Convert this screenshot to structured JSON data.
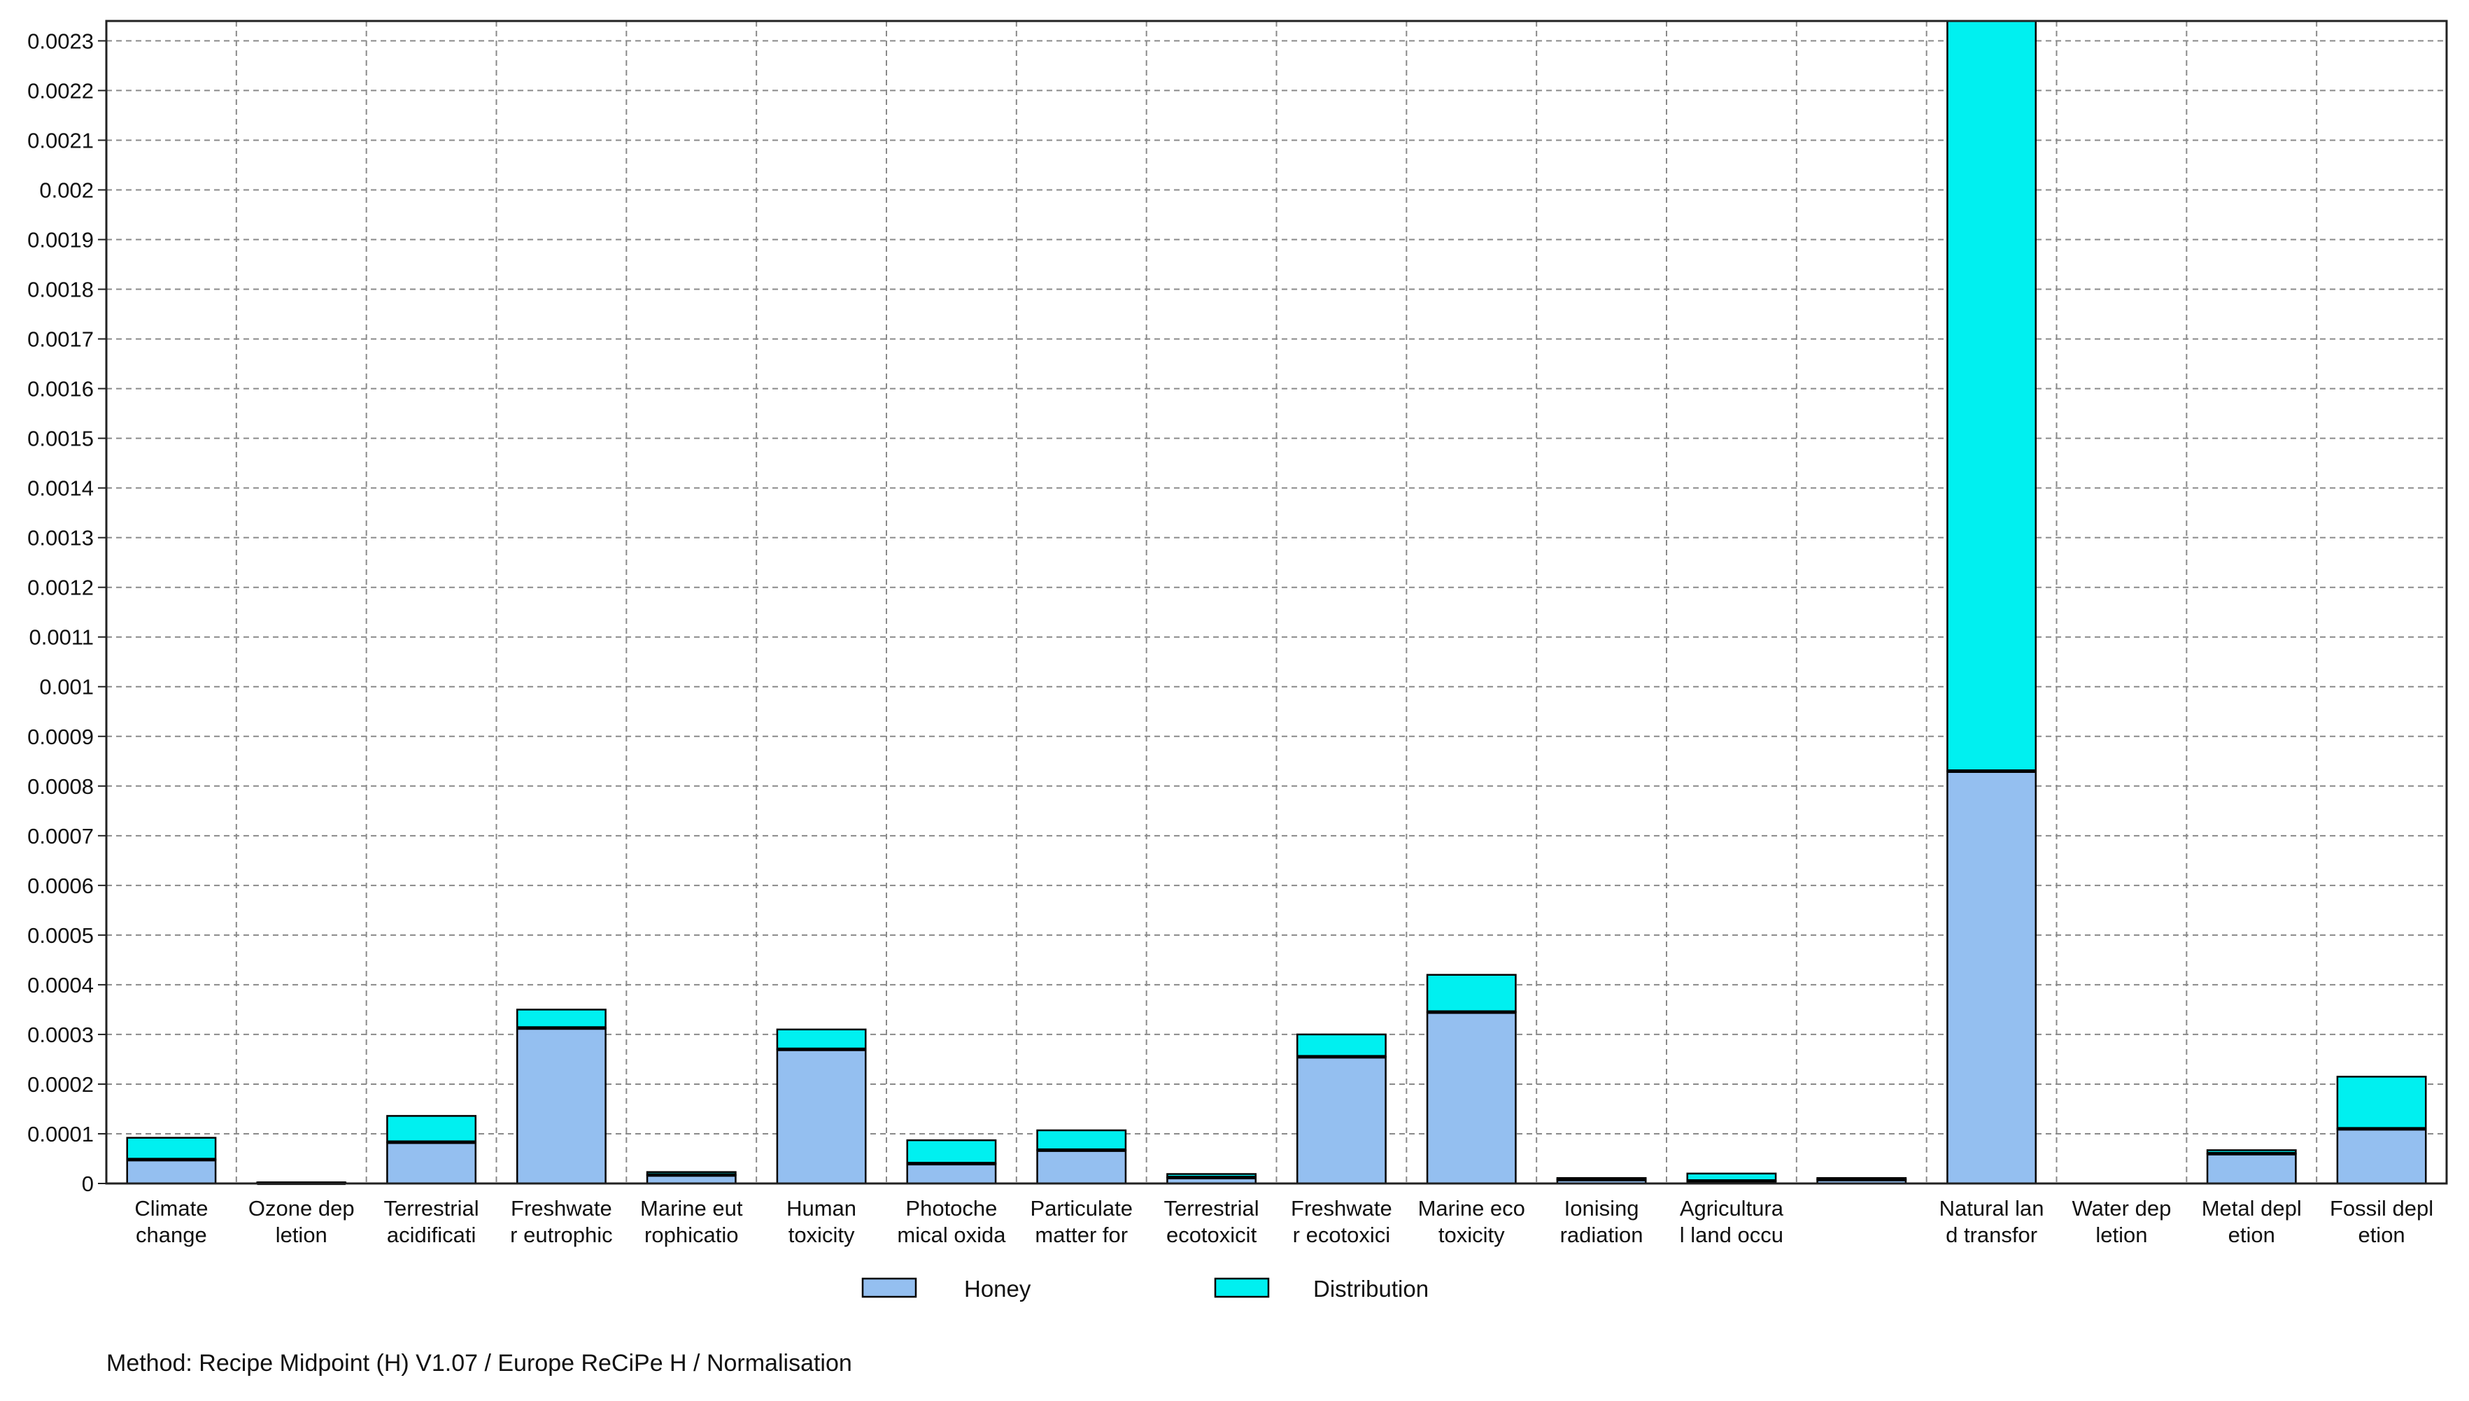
{
  "chart_data": {
    "type": "bar",
    "stacked": true,
    "categories": [
      [
        "Climate",
        "change"
      ],
      [
        "Ozone dep",
        "letion"
      ],
      [
        "Terrestrial",
        "acidificati"
      ],
      [
        "Freshwate",
        "r eutrophic"
      ],
      [
        "Marine eut",
        "rophicatio"
      ],
      [
        "Human",
        "toxicity"
      ],
      [
        "Photoche",
        "mical oxida"
      ],
      [
        "Particulate",
        "matter for"
      ],
      [
        "Terrestrial",
        "ecotoxicit"
      ],
      [
        "Freshwate",
        "r ecotoxici"
      ],
      [
        "Marine eco",
        "toxicity"
      ],
      [
        "Ionising",
        "radiation"
      ],
      [
        "Agricultura",
        "l land occu"
      ],
      [
        "",
        ""
      ],
      [
        "Natural lan",
        "d transfor"
      ],
      [
        "Water dep",
        "letion"
      ],
      [
        "Metal depl",
        "etion"
      ],
      [
        "Fossil depl",
        "etion"
      ]
    ],
    "series": [
      {
        "name": "Honey",
        "color": "#94bff0",
        "values": [
          4.8e-05,
          5e-07,
          8.3e-05,
          0.000313,
          1.7e-05,
          0.00027,
          4e-05,
          6.7e-05,
          1.2e-05,
          0.000255,
          0.000345,
          8e-06,
          5e-06,
          8e-06,
          0.00083,
          0.0,
          6e-05,
          0.00011
        ]
      },
      {
        "name": "Distribution",
        "color": "#00f0f0",
        "values": [
          4.4e-05,
          1.5e-06,
          5.3e-05,
          3.7e-05,
          6e-06,
          4e-05,
          4.7e-05,
          4e-05,
          7e-06,
          4.5e-05,
          7.5e-05,
          3e-06,
          1.5e-05,
          3e-06,
          0.00151,
          0.0,
          7e-06,
          0.000105
        ]
      }
    ],
    "yticks": [
      "0",
      "0.0001",
      "0.0002",
      "0.0003",
      "0.0004",
      "0.0005",
      "0.0006",
      "0.0007",
      "0.0008",
      "0.0009",
      "0.001",
      "0.0011",
      "0.0012",
      "0.0013",
      "0.0014",
      "0.0015",
      "0.0016",
      "0.0017",
      "0.0018",
      "0.0019",
      "0.002",
      "0.0021",
      "0.0022",
      "0.0023"
    ],
    "ylim": [
      0,
      0.00234
    ],
    "grid": true,
    "legend_position": "bottom"
  },
  "footer": {
    "method": "Method: Recipe Midpoint (H) V1.07 / Europe ReCiPe H / Normalisation"
  }
}
